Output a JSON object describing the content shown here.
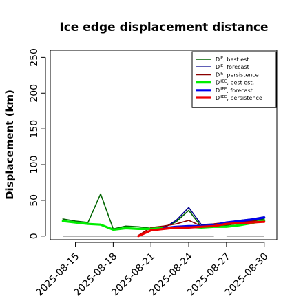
{
  "chart_data": {
    "type": "line",
    "title": "Ice edge displacement distance",
    "xlabel": "",
    "ylabel": "Displacement (km)",
    "xlim": [
      "2025-08-13",
      "2025-08-31"
    ],
    "ylim": [
      -5,
      260
    ],
    "y_ticks": [
      0,
      50,
      100,
      150,
      200,
      250
    ],
    "x_ticks": [
      "2025-08-15",
      "2025-08-18",
      "2025-08-21",
      "2025-08-24",
      "2025-08-27",
      "2025-08-30"
    ],
    "x_tick_colors": [
      "#000000",
      "#000000",
      "#228b22",
      "#000000",
      "#000000",
      "#000000"
    ],
    "grid": false,
    "legend_position": "top-right",
    "series": [
      {
        "name": "D^IE, best est.",
        "legend": {
          "base": "D",
          "sup": "IE",
          "rest": ", best est."
        },
        "color": "#006400",
        "width": "thin",
        "x": [
          "2025-08-14",
          "2025-08-15",
          "2025-08-16",
          "2025-08-17",
          "2025-08-18",
          "2025-08-19",
          "2025-08-20",
          "2025-08-21",
          "2025-08-22",
          "2025-08-23",
          "2025-08-24",
          "2025-08-25",
          "2025-08-26",
          "2025-08-27",
          "2025-08-28",
          "2025-08-29",
          "2025-08-30"
        ],
        "y": [
          24,
          21,
          19,
          59,
          10,
          14,
          13,
          11,
          12,
          20,
          36,
          13,
          13,
          15,
          18,
          21,
          24
        ]
      },
      {
        "name": "D^IE, forecast",
        "legend": {
          "base": "D",
          "sup": "IE",
          "rest": ", forecast"
        },
        "color": "#00008b",
        "width": "thin",
        "x": [
          "2025-08-22",
          "2025-08-23",
          "2025-08-24",
          "2025-08-25",
          "2025-08-26",
          "2025-08-27",
          "2025-08-28",
          "2025-08-29",
          "2025-08-30"
        ],
        "y": [
          11,
          22,
          40,
          16,
          17,
          19,
          22,
          24,
          27
        ]
      },
      {
        "name": "D^IE, persistence",
        "legend": {
          "base": "D",
          "sup": "IE",
          "rest": ", persistence"
        },
        "color": "#8b0000",
        "width": "thin",
        "x": [
          "2025-08-20",
          "2025-08-21",
          "2025-08-22",
          "2025-08-23",
          "2025-08-24",
          "2025-08-25",
          "2025-08-26",
          "2025-08-27",
          "2025-08-28",
          "2025-08-29",
          "2025-08-30"
        ],
        "y": [
          1,
          12,
          14,
          17,
          22,
          14,
          17,
          19,
          20,
          21,
          21
        ]
      },
      {
        "name": "D^IIEE, best est.",
        "legend": {
          "base": "D",
          "sup": "IIEE",
          "rest": ", best est."
        },
        "color": "#00ee00",
        "width": "thick",
        "x": [
          "2025-08-14",
          "2025-08-15",
          "2025-08-16",
          "2025-08-17",
          "2025-08-18",
          "2025-08-19",
          "2025-08-20",
          "2025-08-21",
          "2025-08-22",
          "2025-08-23",
          "2025-08-24",
          "2025-08-25",
          "2025-08-26",
          "2025-08-27",
          "2025-08-28",
          "2025-08-29",
          "2025-08-30"
        ],
        "y": [
          21,
          19,
          17,
          16,
          9,
          11,
          10,
          10,
          11,
          12,
          13,
          12,
          13,
          13,
          15,
          18,
          22
        ]
      },
      {
        "name": "D^IIEE, forecast",
        "legend": {
          "base": "D",
          "sup": "IIEE",
          "rest": ", forecast"
        },
        "color": "#0000ee",
        "width": "thick",
        "x": [
          "2025-08-22",
          "2025-08-23",
          "2025-08-24",
          "2025-08-25",
          "2025-08-26",
          "2025-08-27",
          "2025-08-28",
          "2025-08-29",
          "2025-08-30"
        ],
        "y": [
          11,
          13,
          14,
          14,
          15,
          19,
          21,
          23,
          26
        ]
      },
      {
        "name": "D^IIEE, persistence",
        "legend": {
          "base": "D",
          "sup": "IIEE",
          "rest": ", persistence"
        },
        "color": "#ee0000",
        "width": "thick",
        "x": [
          "2025-08-20",
          "2025-08-21",
          "2025-08-22",
          "2025-08-23",
          "2025-08-24",
          "2025-08-25",
          "2025-08-26",
          "2025-08-27",
          "2025-08-28",
          "2025-08-29",
          "2025-08-30"
        ],
        "y": [
          0,
          8,
          10,
          12,
          12,
          13,
          14,
          17,
          18,
          19,
          20
        ]
      }
    ],
    "zero_segments": [
      {
        "from": "2025-08-14",
        "to": "2025-08-26"
      },
      {
        "from": "2025-08-27",
        "to": "2025-08-30"
      }
    ]
  }
}
